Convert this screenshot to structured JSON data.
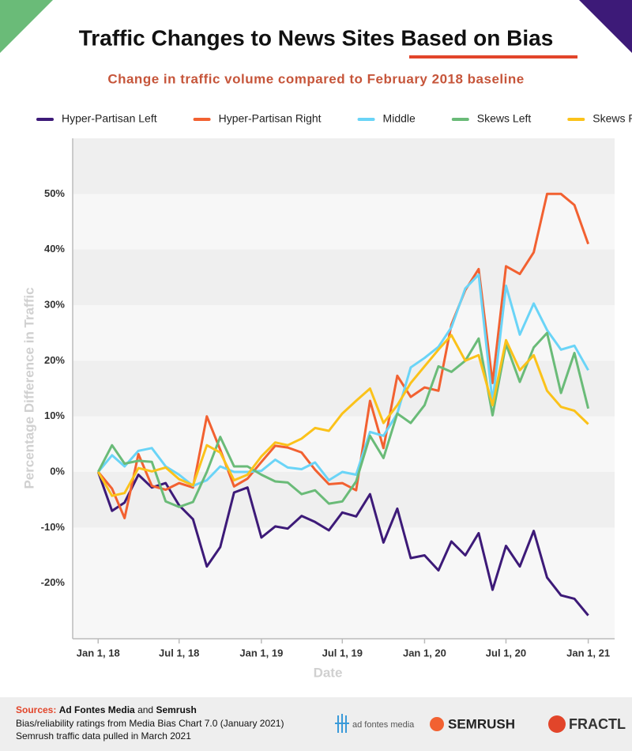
{
  "chart_data": {
    "type": "line",
    "title": "Traffic Changes to News Sites Based on Bias",
    "subtitle": "Change in traffic volume compared to February 2018 baseline",
    "x_label": "Date",
    "y_label": "Percentage Difference in Traffic",
    "x": [
      "2018-01-01",
      "2018-02-01",
      "2018-03-01",
      "2018-04-01",
      "2018-05-01",
      "2018-06-01",
      "2018-07-01",
      "2018-08-01",
      "2018-09-01",
      "2018-10-01",
      "2018-11-01",
      "2018-12-01",
      "2019-01-01",
      "2019-02-01",
      "2019-03-01",
      "2019-04-01",
      "2019-05-01",
      "2019-06-01",
      "2019-07-01",
      "2019-08-01",
      "2019-09-01",
      "2019-10-01",
      "2019-11-01",
      "2019-12-01",
      "2020-01-01",
      "2020-02-01",
      "2020-03-01",
      "2020-04-01",
      "2020-05-01",
      "2020-06-01",
      "2020-07-01",
      "2020-08-01",
      "2020-09-01",
      "2020-10-01",
      "2020-11-01",
      "2020-12-01",
      "2021-01-01"
    ],
    "xlim": [
      "2017-11-05",
      "2021-03-01"
    ],
    "xticks": [
      {
        "value": "2018-01-01",
        "label": "Jan 1, 18"
      },
      {
        "value": "2018-07-01",
        "label": "Jul 1, 18"
      },
      {
        "value": "2019-01-01",
        "label": "Jan 1, 19"
      },
      {
        "value": "2019-07-01",
        "label": "Jul 1, 19"
      },
      {
        "value": "2020-01-01",
        "label": "Jan 1, 20"
      },
      {
        "value": "2020-07-01",
        "label": "Jul 1, 20"
      },
      {
        "value": "2021-01-01",
        "label": "Jan 1, 21"
      }
    ],
    "ylim": [
      -30,
      60
    ],
    "yticks": [
      {
        "value": -20,
        "label": "-20%"
      },
      {
        "value": -10,
        "label": "-10%"
      },
      {
        "value": 0,
        "label": "0%"
      },
      {
        "value": 10,
        "label": "10%"
      },
      {
        "value": 20,
        "label": "20%"
      },
      {
        "value": 30,
        "label": "30%"
      },
      {
        "value": 40,
        "label": "40%"
      },
      {
        "value": 50,
        "label": "50%"
      }
    ],
    "legend": "top",
    "series": [
      {
        "name": "Hyper-Partisan Left",
        "color": "#3d1a78",
        "values": [
          0,
          -7,
          -5.5,
          -0.5,
          -2.8,
          -2,
          -6,
          -8.5,
          -17,
          -13.5,
          -3.7,
          -2.8,
          -11.8,
          -9.8,
          -10.2,
          -7.9,
          -9,
          -10.5,
          -7.3,
          -8,
          -4,
          -12.7,
          -6.6,
          -15.5,
          -15,
          -17.7,
          -12.5,
          -15,
          -11,
          -21.2,
          -13.3,
          -17,
          -10.6,
          -19,
          -22.2,
          -22.8,
          -25.8
        ]
      },
      {
        "name": "Hyper-Partisan Right",
        "color": "#f26131",
        "values": [
          0,
          -3,
          -8.3,
          3.2,
          -2.5,
          -3.2,
          -2,
          -2.8,
          10,
          4,
          -2.6,
          -1.2,
          1.8,
          4.7,
          4.4,
          3.5,
          0.4,
          -2.2,
          -2,
          -3.3,
          12.8,
          4.3,
          17.3,
          13.5,
          15.2,
          14.6,
          26.5,
          32.7,
          36.5,
          16,
          37,
          35.6,
          39.5,
          50,
          50,
          48,
          41
        ]
      },
      {
        "name": "Middle",
        "color": "#6ad4f7",
        "values": [
          0,
          3,
          1,
          3.8,
          4.3,
          1,
          -0.5,
          -2.5,
          -1.5,
          1,
          0,
          0,
          0.2,
          2.2,
          0.8,
          0.5,
          1.7,
          -1.5,
          0,
          -0.5,
          7.2,
          6.5,
          10.5,
          18.8,
          20.5,
          22.5,
          26,
          33,
          35.5,
          12.5,
          33.5,
          24.7,
          30.3,
          25.5,
          22,
          22.7,
          18.3
        ]
      },
      {
        "name": "Skews Left",
        "color": "#6abb78",
        "values": [
          0,
          4.8,
          1.5,
          2,
          1.8,
          -5.3,
          -6.3,
          -5.4,
          0,
          6.3,
          1,
          1,
          -0.5,
          -1.7,
          -1.9,
          -4,
          -3.3,
          -5.7,
          -5.3,
          -1.7,
          6.5,
          2.5,
          10.5,
          8.8,
          12,
          19,
          18,
          20,
          24,
          10.2,
          23,
          16.2,
          22.4,
          25,
          14.2,
          21.4,
          11.4
        ]
      },
      {
        "name": "Skews Right",
        "color": "#fbc21a",
        "values": [
          0,
          -4.3,
          -3.8,
          0.7,
          0.1,
          0.8,
          -1.3,
          -2.4,
          4.8,
          3.5,
          -1.5,
          -0.5,
          2.8,
          5.3,
          4.8,
          6,
          7.9,
          7.4,
          10.5,
          12.8,
          15,
          8.8,
          12,
          16,
          19,
          22,
          24.6,
          20,
          21,
          12,
          23.7,
          18.3,
          21,
          14.6,
          11.7,
          11,
          8.6
        ]
      }
    ]
  },
  "footer": {
    "sources_label": "Sources:",
    "source1": "Ad Fontes Media",
    "and": "and",
    "source2": "Semrush",
    "line2": "Bias/reliability ratings from Media Bias Chart 7.0 (January 2021)",
    "line3": "Semrush traffic data pulled in March 2021",
    "logo1": "ad fontes media",
    "logo2": "SEMRUSH",
    "logo3": "FRACTL"
  }
}
